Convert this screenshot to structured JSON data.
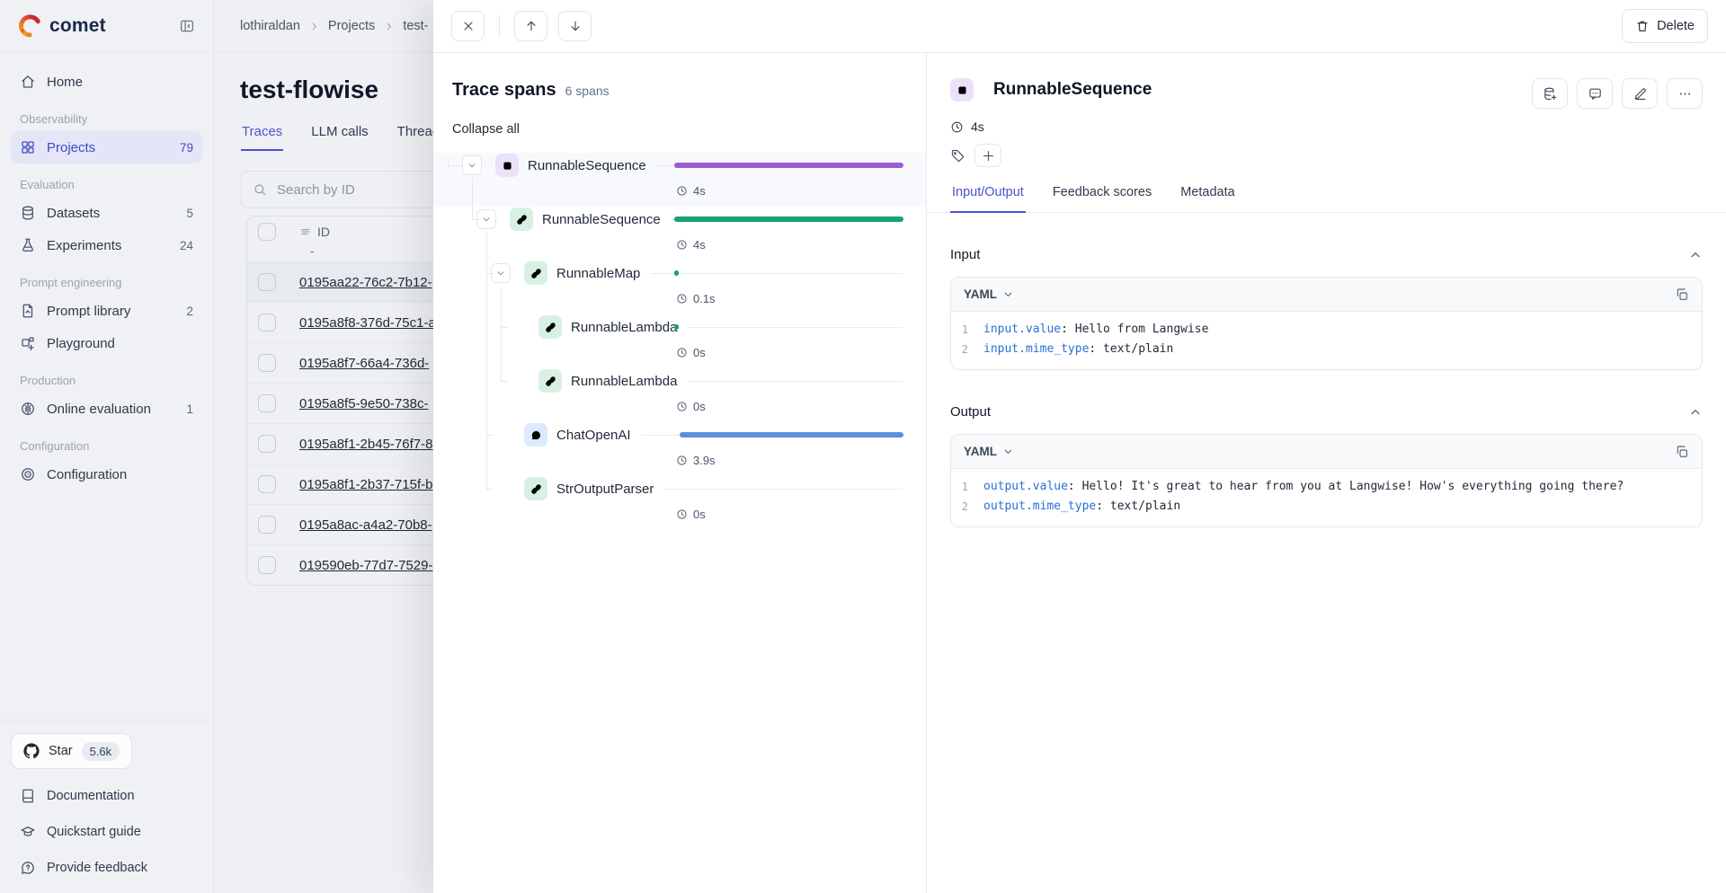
{
  "app": {
    "brand": "comet",
    "breadcrumb": [
      "lothiraldan",
      "Projects",
      "test-"
    ],
    "delete_label": "Delete"
  },
  "sidebar": {
    "sections": [
      {
        "label": "",
        "items": [
          {
            "label": "Home",
            "icon": "home"
          }
        ]
      },
      {
        "label": "Observability",
        "items": [
          {
            "label": "Projects",
            "icon": "grid",
            "count": "79",
            "active": true
          }
        ]
      },
      {
        "label": "Evaluation",
        "items": [
          {
            "label": "Datasets",
            "icon": "database",
            "count": "5"
          },
          {
            "label": "Experiments",
            "icon": "flask",
            "count": "24"
          }
        ]
      },
      {
        "label": "Prompt engineering",
        "items": [
          {
            "label": "Prompt library",
            "icon": "file",
            "count": "2"
          },
          {
            "label": "Playground",
            "icon": "playground"
          }
        ]
      },
      {
        "label": "Production",
        "items": [
          {
            "label": "Online evaluation",
            "icon": "brain",
            "count": "1"
          }
        ]
      },
      {
        "label": "Configuration",
        "items": [
          {
            "label": "Configuration",
            "icon": "target"
          }
        ]
      }
    ],
    "footer": {
      "star_label": "Star",
      "star_count": "5.6k",
      "links": [
        {
          "label": "Documentation",
          "icon": "book"
        },
        {
          "label": "Quickstart guide",
          "icon": "grad-cap"
        },
        {
          "label": "Provide feedback",
          "icon": "feedback"
        }
      ]
    }
  },
  "main": {
    "title": "test-flowise",
    "tabs": [
      {
        "label": "Traces",
        "active": true
      },
      {
        "label": "LLM calls"
      },
      {
        "label": "Threads"
      }
    ],
    "search_placeholder": "Search by ID",
    "table": {
      "id_header": "ID",
      "filter_placeholder": "-",
      "selected_index": 0,
      "rows": [
        "0195aa22-76c2-7b12-",
        "0195a8f8-376d-75c1-a",
        "0195a8f7-66a4-736d-",
        "0195a8f5-9e50-738c-",
        "0195a8f1-2b45-76f7-8",
        "0195a8f1-2b37-715f-b",
        "0195a8ac-a4a2-70b8-",
        "019590eb-77d7-7529-"
      ]
    }
  },
  "trace_panel": {
    "title": "Trace spans",
    "span_count": "6 spans",
    "collapse_all": "Collapse all",
    "spans": [
      {
        "name": "RunnableSequence",
        "duration": "4s",
        "depth": 0,
        "chevron": true,
        "color": "purple",
        "icon": "node",
        "bar": {
          "start": 0,
          "end": 100
        },
        "selected": true
      },
      {
        "name": "RunnableSequence",
        "duration": "4s",
        "depth": 1,
        "chevron": true,
        "color": "green",
        "icon": "link",
        "bar": {
          "start": 0,
          "end": 100
        }
      },
      {
        "name": "RunnableMap",
        "duration": "0.1s",
        "depth": 2,
        "chevron": true,
        "color": "green",
        "icon": "link",
        "bar": {
          "start": 0,
          "end": 2
        }
      },
      {
        "name": "RunnableLambda",
        "duration": "0s",
        "depth": 3,
        "chevron": false,
        "color": "green",
        "icon": "link",
        "bar": {
          "start": 0,
          "end": 2
        }
      },
      {
        "name": "RunnableLambda",
        "duration": "0s",
        "depth": 3,
        "chevron": false,
        "color": "green",
        "icon": "link",
        "bar": null
      },
      {
        "name": "ChatOpenAI",
        "duration": "3.9s",
        "depth": 2,
        "chevron": false,
        "color": "blue",
        "icon": "bubble",
        "bar": {
          "start": 2.5,
          "end": 100
        }
      },
      {
        "name": "StrOutputParser",
        "duration": "0s",
        "depth": 2,
        "chevron": false,
        "color": "green",
        "icon": "link",
        "bar": null
      }
    ]
  },
  "detail_panel": {
    "title": "RunnableSequence",
    "duration": "4s",
    "tabs": [
      {
        "label": "Input/Output",
        "active": true
      },
      {
        "label": "Feedback scores"
      },
      {
        "label": "Metadata"
      }
    ],
    "input": {
      "heading": "Input",
      "format": "YAML",
      "lines": [
        {
          "num": "1",
          "key": "input.value",
          "value": "Hello from Langwise"
        },
        {
          "num": "2",
          "key": "input.mime_type",
          "value": "text/plain"
        }
      ]
    },
    "output": {
      "heading": "Output",
      "format": "YAML",
      "lines": [
        {
          "num": "1",
          "key": "output.value",
          "value": "Hello! It's great to hear from you at Langwise! How's everything going there?"
        },
        {
          "num": "2",
          "key": "output.mime_type",
          "value": "text/plain"
        }
      ]
    }
  },
  "colors": {
    "accent_indigo": "#4d52cc",
    "bar_purple": "#9a5cd0",
    "bar_green": "#18a374",
    "bar_blue": "#5d8fdd"
  }
}
